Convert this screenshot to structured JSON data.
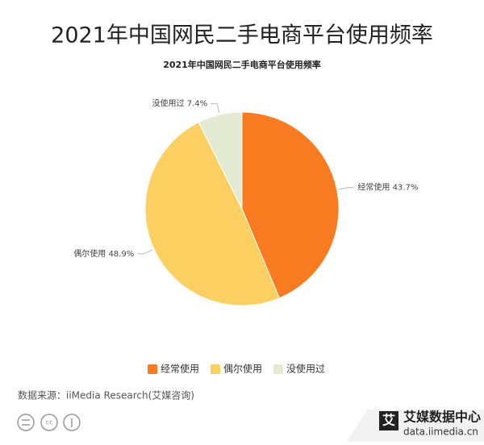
{
  "chart_data": {
    "type": "pie",
    "title": "2021年中国网民二手电商平台使用频率",
    "subtitle": "2021年中国网民二手电商平台使用频率",
    "categories": [
      "经常使用",
      "偶尔使用",
      "没使用过"
    ],
    "values": [
      43.7,
      48.9,
      7.4
    ],
    "value_labels": [
      "43.7%",
      "48.9%",
      "7.4%"
    ],
    "colors": [
      "#f97b1f",
      "#fbcf60",
      "#e3ebd3"
    ],
    "legend": "bottom",
    "source": "数据来源：iiMedia Research(艾媒咨询)"
  },
  "footer": {
    "brand": "艾媒数据中心",
    "url": "data.iimedia.cn"
  }
}
